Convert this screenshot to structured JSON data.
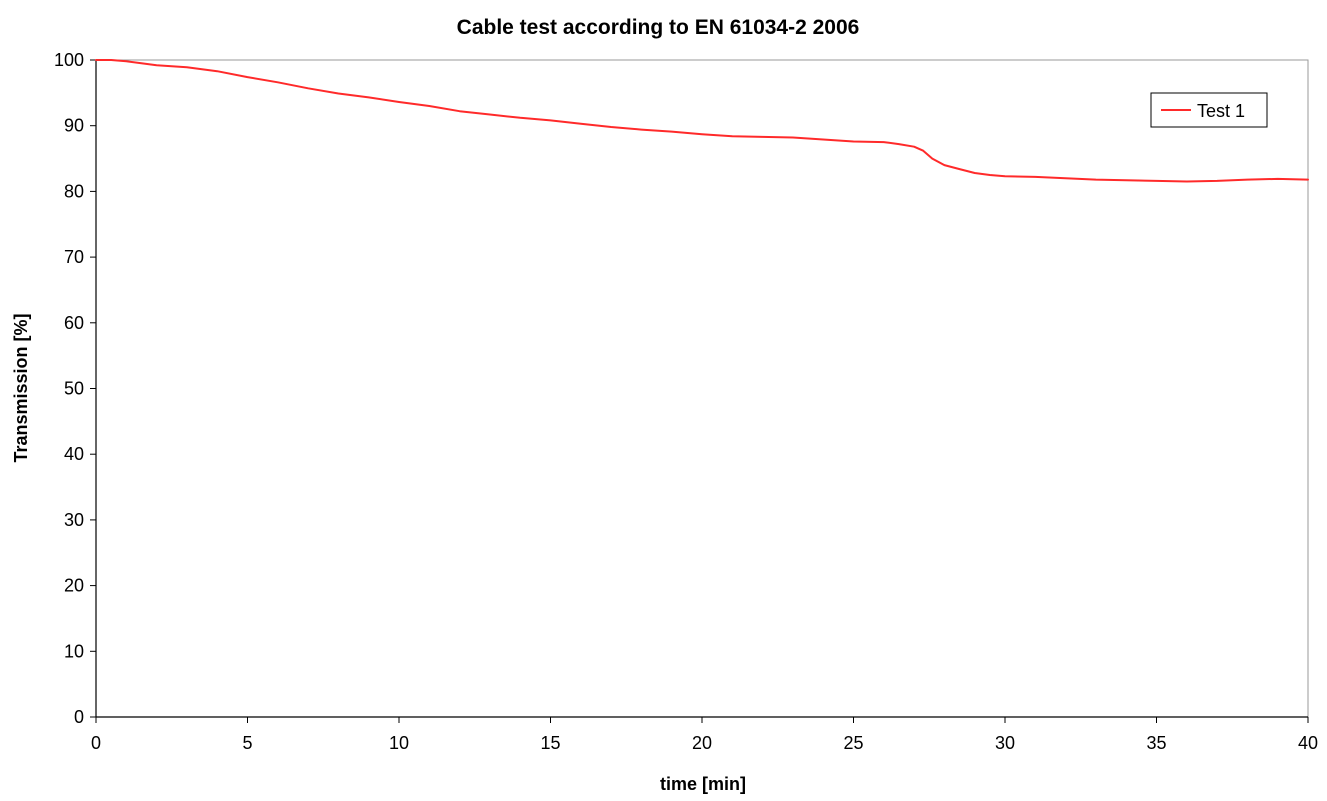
{
  "chart_data": {
    "type": "line",
    "title": "Cable test according to EN 61034-2 2006",
    "xlabel": "time [min]",
    "ylabel": "Transmission [%]",
    "xlim": [
      0,
      40
    ],
    "ylim": [
      0,
      100
    ],
    "xticks": [
      0,
      5,
      10,
      15,
      20,
      25,
      30,
      35,
      40
    ],
    "yticks": [
      0,
      10,
      20,
      30,
      40,
      50,
      60,
      70,
      80,
      90,
      100
    ],
    "grid": false,
    "legend_position": "top-right",
    "series": [
      {
        "name": "Test 1",
        "color": "#ff2a2a",
        "x": [
          0,
          0.5,
          1,
          1.5,
          2,
          3,
          4,
          5,
          6,
          7,
          8,
          9,
          10,
          11,
          12,
          13,
          14,
          15,
          16,
          17,
          18,
          19,
          20,
          21,
          22,
          23,
          24,
          25,
          26,
          26.5,
          27,
          27.3,
          27.6,
          28,
          28.5,
          29,
          29.5,
          30,
          31,
          32,
          33,
          34,
          35,
          36,
          37,
          38,
          39,
          40
        ],
        "y": [
          100,
          100,
          99.8,
          99.5,
          99.2,
          98.9,
          98.3,
          97.4,
          96.6,
          95.7,
          94.9,
          94.3,
          93.6,
          93.0,
          92.2,
          91.7,
          91.2,
          90.8,
          90.3,
          89.8,
          89.4,
          89.1,
          88.7,
          88.4,
          88.3,
          88.2,
          87.9,
          87.6,
          87.5,
          87.2,
          86.8,
          86.2,
          85.0,
          84.0,
          83.4,
          82.8,
          82.5,
          82.3,
          82.2,
          82.0,
          81.8,
          81.7,
          81.6,
          81.5,
          81.6,
          81.8,
          81.9,
          81.8
        ]
      }
    ]
  }
}
